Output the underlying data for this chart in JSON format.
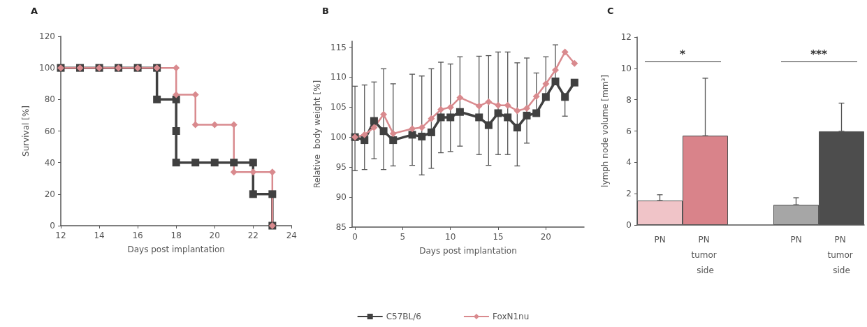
{
  "chart_data": [
    {
      "type": "line",
      "title": "A",
      "xlabel": "Days post implantation",
      "ylabel": "Survival [%]",
      "xlim": [
        12,
        24
      ],
      "xticks": [
        12,
        14,
        16,
        18,
        20,
        22,
        24
      ],
      "ylim": [
        0,
        120
      ],
      "yticks": [
        0,
        20,
        40,
        60,
        80,
        100,
        120
      ],
      "grid": false,
      "legend": false,
      "series": [
        {
          "color": "#404040",
          "marker": "square",
          "x": [
            12,
            13,
            14,
            15,
            16,
            17,
            17,
            18,
            18,
            18,
            19,
            20,
            21,
            22,
            22,
            23,
            23
          ],
          "values": [
            100,
            100,
            100,
            100,
            100,
            100,
            80,
            80,
            60,
            40,
            40,
            40,
            40,
            40,
            20,
            20,
            0
          ]
        },
        {
          "color": "#d98a8e",
          "marker": "diamond",
          "x": [
            12,
            13,
            14,
            15,
            16,
            17,
            18,
            18,
            19,
            19,
            20,
            21,
            21,
            22,
            23,
            23
          ],
          "values": [
            100,
            100,
            100,
            100,
            100,
            100,
            100,
            83,
            83,
            64,
            64,
            64,
            34,
            34,
            34,
            0
          ]
        }
      ]
    },
    {
      "type": "line",
      "title": "B",
      "xlabel": "Days post implantation",
      "ylabel": "Relative  body weight [%]",
      "xlim": [
        -0.3,
        24
      ],
      "xticks": [
        0,
        5,
        10,
        15,
        20
      ],
      "ylim": [
        85,
        116
      ],
      "yticks": [
        85,
        90,
        95,
        100,
        105,
        110,
        115
      ],
      "grid": false,
      "legend": "bottom",
      "series": [
        {
          "name": "C57BL/6",
          "color": "#404040",
          "marker": "square",
          "x": [
            0,
            1,
            2,
            3,
            4,
            6,
            7,
            8,
            9,
            10,
            11,
            13,
            14,
            15,
            16,
            17,
            18,
            19,
            20,
            21,
            22,
            23
          ],
          "values": [
            100,
            99.5,
            102.7,
            101.0,
            99.5,
            100.4,
            100.1,
            100.8,
            103.3,
            103.3,
            104.2,
            103.3,
            102.0,
            104.0,
            103.3,
            101.6,
            103.6,
            104.0,
            106.7,
            109.3,
            106.7,
            109.1
          ],
          "errors": [
            [
              94.4,
              108.5
            ],
            [
              94.6,
              108.7
            ],
            [
              96.4,
              109.2
            ],
            [
              94.6,
              111.4
            ],
            [
              95.2,
              108.9
            ],
            [
              95.3,
              110.5
            ],
            [
              93.7,
              110.2
            ],
            [
              94.8,
              111.4
            ],
            [
              97.4,
              112.5
            ],
            [
              97.6,
              112.2
            ],
            [
              98.5,
              113.4
            ],
            [
              97.1,
              113.5
            ],
            [
              95.3,
              113.6
            ],
            [
              97.1,
              114.2
            ],
            [
              97.1,
              114.2
            ],
            [
              95.2,
              112.4
            ],
            [
              99.0,
              113.2
            ],
            [
              104.0,
              110.7
            ],
            [
              106.7,
              113.4
            ],
            [
              109.3,
              115.4
            ],
            [
              103.5,
              106.7
            ],
            null
          ]
        },
        {
          "name": "FoxN1nu",
          "color": "#d98a8e",
          "marker": "diamond",
          "x": [
            0,
            1,
            2,
            3,
            4,
            6,
            7,
            8,
            9,
            10,
            11,
            13,
            14,
            15,
            16,
            17,
            18,
            19,
            20,
            21,
            22,
            23
          ],
          "values": [
            100,
            100.4,
            101.6,
            103.8,
            100.6,
            101.4,
            101.6,
            103.1,
            104.6,
            105.0,
            106.6,
            105.2,
            105.9,
            105.3,
            105.3,
            104.4,
            104.8,
            106.8,
            108.9,
            111.2,
            114.2,
            112.3
          ]
        }
      ]
    },
    {
      "type": "bar",
      "title": "C",
      "ylabel": "lymph node volume [mm³]",
      "ylim": [
        0,
        12
      ],
      "yticks": [
        0,
        2,
        4,
        6,
        8,
        10,
        12
      ],
      "grid": false,
      "categories": [
        "PN",
        "PN tumor side",
        null,
        "PN",
        "PN tumor side"
      ],
      "values": [
        1.56,
        5.7,
        null,
        1.29,
        5.98
      ],
      "colors": [
        "#f0c4c8",
        "#d9838a",
        "#a6a6a6",
        "#a6a6a6",
        "#4d4d4d"
      ],
      "errors": [
        [
          1.56,
          1.93
        ],
        [
          5.7,
          9.37
        ],
        null,
        [
          1.29,
          1.74
        ],
        [
          5.98,
          7.78
        ]
      ],
      "annotations": [
        "*",
        "***"
      ]
    }
  ]
}
